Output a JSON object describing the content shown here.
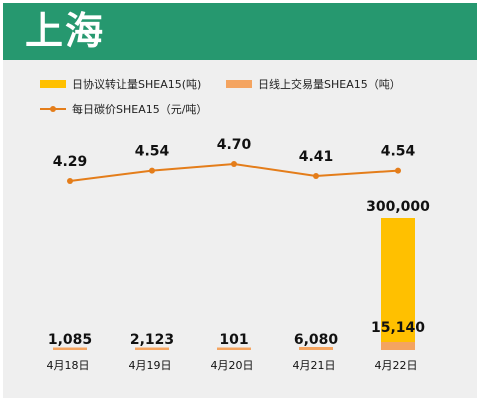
{
  "header": {
    "title": "上海"
  },
  "colors": {
    "header_bg": "#26986f",
    "agreement": "#ffc000",
    "online": "#f4a460",
    "price": "#e47d1a"
  },
  "chart_data": {
    "type": "bar+line",
    "categories": [
      "4月18日",
      "4月19日",
      "4月20日",
      "4月21日",
      "4月22日"
    ],
    "series": [
      {
        "name": "日协议转让量SHEA15(吨)",
        "kind": "bar",
        "stack": "volume",
        "values": [
          0,
          0,
          0,
          0,
          300000
        ],
        "labels": [
          "",
          "",
          "",
          "",
          "300,000"
        ]
      },
      {
        "name": "日线上交易量SHEA15（吨）",
        "kind": "bar",
        "stack": "volume",
        "values": [
          1085,
          2123,
          101,
          6080,
          15140
        ],
        "labels": [
          "1,085",
          "2,123",
          "101",
          "6,080",
          "15,140"
        ]
      },
      {
        "name": "每日碳价SHEA15（元/吨）",
        "kind": "line",
        "values": [
          4.29,
          4.54,
          4.7,
          4.41,
          4.54
        ],
        "labels": [
          "4.29",
          "4.54",
          "4.70",
          "4.41",
          "4.54"
        ]
      }
    ],
    "legend_position": "top-left",
    "grid": false
  }
}
